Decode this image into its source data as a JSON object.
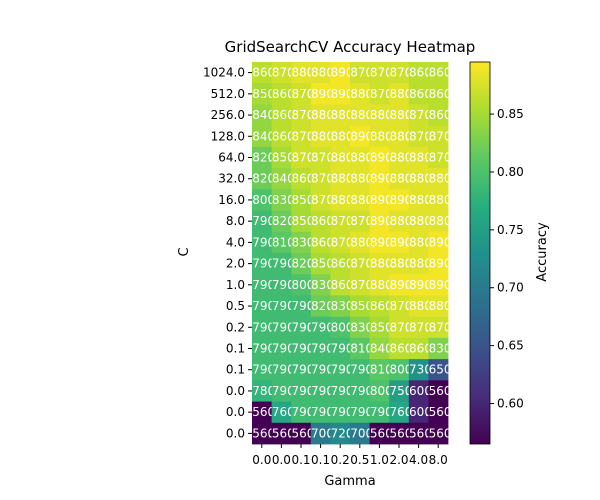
{
  "chart_data": {
    "type": "heatmap",
    "title": "GridSearchCV Accuracy Heatmap",
    "xlabel": "Gamma",
    "ylabel": "C",
    "colorbar_label": "Accuracy",
    "colormap": "viridis",
    "color_range": [
      0.565,
      0.895
    ],
    "colorbar_ticks": [
      "0.60",
      "0.65",
      "0.70",
      "0.75",
      "0.80",
      "0.85"
    ],
    "x_tick_labels": [
      "0.0",
      "0.0",
      "0.1",
      "0.1",
      "0.2",
      "0.5",
      "1.0",
      "2.0",
      "4.0",
      "8.0"
    ],
    "y_tick_labels": [
      "1024.0",
      "512.0",
      "256.0",
      "128.0",
      "64.0",
      "32.0",
      "16.0",
      "8.0",
      "4.0",
      "2.0",
      "1.0",
      "0.5",
      "0.2",
      "0.1",
      "0.1",
      "0.0",
      "0.0",
      "0.0"
    ],
    "values": [
      [
        0.86,
        0.87,
        0.88,
        0.88,
        0.89,
        0.87,
        0.87,
        0.87,
        0.86,
        0.86
      ],
      [
        0.85,
        0.86,
        0.87,
        0.89,
        0.89,
        0.88,
        0.87,
        0.88,
        0.86,
        0.86
      ],
      [
        0.84,
        0.86,
        0.87,
        0.88,
        0.88,
        0.88,
        0.88,
        0.88,
        0.87,
        0.86
      ],
      [
        0.84,
        0.86,
        0.87,
        0.88,
        0.88,
        0.89,
        0.88,
        0.88,
        0.87,
        0.87
      ],
      [
        0.82,
        0.85,
        0.87,
        0.87,
        0.88,
        0.88,
        0.89,
        0.88,
        0.88,
        0.87
      ],
      [
        0.82,
        0.84,
        0.86,
        0.87,
        0.88,
        0.88,
        0.89,
        0.88,
        0.88,
        0.88
      ],
      [
        0.8,
        0.83,
        0.85,
        0.87,
        0.88,
        0.88,
        0.89,
        0.89,
        0.88,
        0.88
      ],
      [
        0.79,
        0.82,
        0.85,
        0.86,
        0.87,
        0.87,
        0.89,
        0.88,
        0.88,
        0.88
      ],
      [
        0.79,
        0.81,
        0.83,
        0.86,
        0.87,
        0.88,
        0.89,
        0.89,
        0.88,
        0.89
      ],
      [
        0.79,
        0.79,
        0.82,
        0.85,
        0.86,
        0.87,
        0.88,
        0.88,
        0.88,
        0.89
      ],
      [
        0.79,
        0.79,
        0.8,
        0.83,
        0.86,
        0.87,
        0.88,
        0.89,
        0.89,
        0.89
      ],
      [
        0.79,
        0.79,
        0.79,
        0.82,
        0.83,
        0.85,
        0.86,
        0.87,
        0.88,
        0.88
      ],
      [
        0.79,
        0.79,
        0.79,
        0.79,
        0.8,
        0.83,
        0.85,
        0.87,
        0.87,
        0.87
      ],
      [
        0.79,
        0.79,
        0.79,
        0.79,
        0.79,
        0.81,
        0.84,
        0.86,
        0.86,
        0.83
      ],
      [
        0.79,
        0.79,
        0.79,
        0.79,
        0.79,
        0.79,
        0.81,
        0.8,
        0.73,
        0.65
      ],
      [
        0.78,
        0.79,
        0.79,
        0.79,
        0.79,
        0.79,
        0.8,
        0.75,
        0.6,
        0.56
      ],
      [
        0.56,
        0.76,
        0.79,
        0.79,
        0.79,
        0.79,
        0.79,
        0.76,
        0.6,
        0.56
      ],
      [
        0.56,
        0.56,
        0.56,
        0.7,
        0.72,
        0.7,
        0.56,
        0.56,
        0.56,
        0.56
      ]
    ]
  }
}
